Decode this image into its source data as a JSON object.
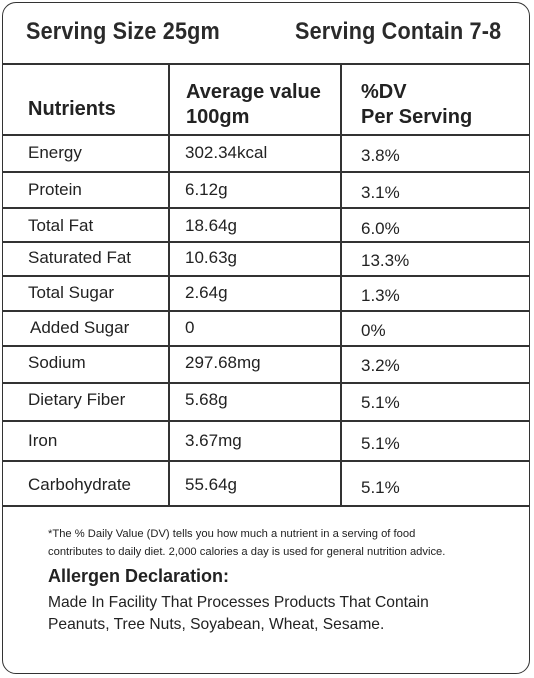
{
  "header": {
    "serving_size": "Serving Size 25gm",
    "serving_contain": "Serving Contain 7-8"
  },
  "columns": {
    "nutrients": "Nutrients",
    "average_line1": "Average value",
    "average_line2": "100gm",
    "dv_line1": "%DV",
    "dv_line2": "Per Serving"
  },
  "rows": [
    {
      "name": "Energy",
      "value": "302.34kcal",
      "dv": "3.8%"
    },
    {
      "name": "Protein",
      "value": "6.12g",
      "dv": "3.1%"
    },
    {
      "name": "Total Fat",
      "value": "18.64g",
      "dv": "6.0%"
    },
    {
      "name": "Saturated Fat",
      "value": "10.63g",
      "dv": "13.3%"
    },
    {
      "name": "Total Sugar",
      "value": "2.64g",
      "dv": "1.3%"
    },
    {
      "name": "Added Sugar",
      "value": "0",
      "dv": "0%"
    },
    {
      "name": "Sodium",
      "value": "297.68mg",
      "dv": "3.2%"
    },
    {
      "name": "Dietary Fiber",
      "value": "5.68g",
      "dv": "5.1%"
    },
    {
      "name": "Iron",
      "value": "3.67mg",
      "dv": "5.1%"
    },
    {
      "name": "Carbohydrate",
      "value": "55.64g",
      "dv": "5.1%"
    }
  ],
  "footnote": {
    "line1": "*The % Daily Value (DV) tells you how much a nutrient in a serving of food",
    "line2": "contributes to daily diet. 2,000 calories a day is used for general nutrition advice."
  },
  "allergen": {
    "title": "Allergen Declaration:",
    "line1": "Made In Facility That Processes Products That Contain",
    "line2": "Peanuts, Tree Nuts, Soyabean, Wheat, Sesame."
  }
}
